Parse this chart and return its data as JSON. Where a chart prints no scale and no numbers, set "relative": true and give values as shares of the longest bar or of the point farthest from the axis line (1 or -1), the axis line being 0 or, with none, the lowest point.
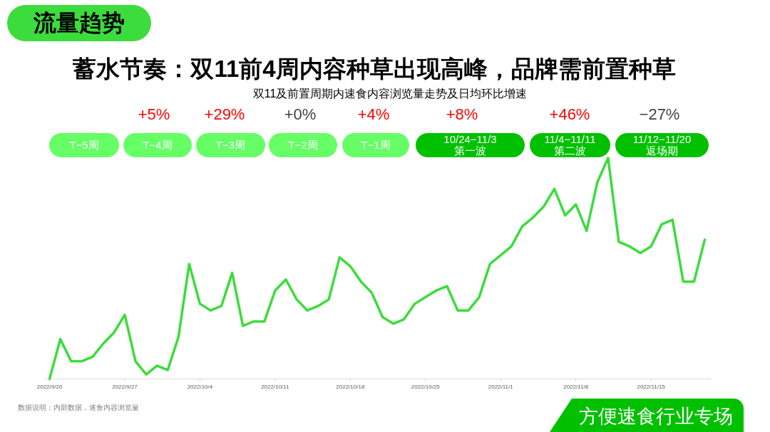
{
  "chart_data": {
    "type": "line",
    "title": "蓄水节奏：双11前4周内容种草出现高峰，品牌需前置种草",
    "subtitle": "双11及前置周期内速食内容浏览量走势及日均环比增速",
    "relative": true,
    "x": [
      "2022-09-20",
      "2022-09-21",
      "2022-09-22",
      "2022-09-23",
      "2022-09-24",
      "2022-09-25",
      "2022-09-26",
      "2022-09-27",
      "2022-09-28",
      "2022-09-29",
      "2022-09-30",
      "2022-10-01",
      "2022-10-02",
      "2022-10-03",
      "2022-10-04",
      "2022-10-05",
      "2022-10-06",
      "2022-10-07",
      "2022-10-08",
      "2022-10-09",
      "2022-10-10",
      "2022-10-11",
      "2022-10-12",
      "2022-10-13",
      "2022-10-14",
      "2022-10-15",
      "2022-10-16",
      "2022-10-17",
      "2022-10-18",
      "2022-10-19",
      "2022-10-20",
      "2022-10-21",
      "2022-10-22",
      "2022-10-23",
      "2022-10-24",
      "2022-10-25",
      "2022-10-26",
      "2022-10-27",
      "2022-10-28",
      "2022-10-29",
      "2022-10-30",
      "2022-10-31",
      "2022-11-01",
      "2022-11-02",
      "2022-11-03",
      "2022-11-04",
      "2022-11-05",
      "2022-11-06",
      "2022-11-07",
      "2022-11-08",
      "2022-11-09",
      "2022-11-10",
      "2022-11-11",
      "2022-11-12",
      "2022-11-13",
      "2022-11-14",
      "2022-11-15",
      "2022-11-16",
      "2022-11-17",
      "2022-11-18",
      "2022-11-19",
      "2022-11-20"
    ],
    "xlim": [
      "2022-09-19T12:00",
      "2022-11-20T12:00"
    ],
    "xticks": [
      {
        "value": "2022-09-20",
        "label": "2022/9/20"
      },
      {
        "value": "2022-09-27",
        "label": "2022/9/27"
      },
      {
        "value": "2022-10-04",
        "label": "2022/10/4"
      },
      {
        "value": "2022-10-11",
        "label": "2022/10/11"
      },
      {
        "value": "2022-10-18",
        "label": "2022/10/18"
      },
      {
        "value": "2022-10-25",
        "label": "2022/10/25"
      },
      {
        "value": "2022-11-01",
        "label": "2022/11/1"
      },
      {
        "value": "2022-11-08",
        "label": "2022/11/8"
      },
      {
        "value": "2022-11-15",
        "label": "2022/11/15"
      }
    ],
    "series": [
      {
        "color": "#3cdc3c",
        "values": [
          0,
          0.18,
          0.08,
          0.08,
          0.1,
          0.16,
          0.21,
          0.29,
          0.08,
          0.02,
          0.06,
          0.04,
          0.19,
          0.52,
          0.34,
          0.31,
          0.33,
          0.48,
          0.24,
          0.26,
          0.26,
          0.4,
          0.45,
          0.36,
          0.31,
          0.33,
          0.36,
          0.55,
          0.51,
          0.44,
          0.39,
          0.28,
          0.25,
          0.27,
          0.34,
          0.37,
          0.4,
          0.42,
          0.31,
          0.31,
          0.37,
          0.52,
          0.56,
          0.6,
          0.69,
          0.73,
          0.78,
          0.86,
          0.74,
          0.79,
          0.67,
          0.89,
          1,
          0.62,
          0.6,
          0.57,
          0.6,
          0.7,
          0.72,
          0.44,
          0.44,
          0.63
        ]
      }
    ],
    "annotations": [
      "流量趋势",
      "+5%",
      "+29%",
      "+0%",
      "+4%",
      "+8%",
      "+46%",
      "−27%",
      "T−5周",
      "T−4周",
      "T−3周",
      "T−2周",
      "T−1周",
      "10/24−11/3\n第一波",
      "11/4−11/11\n第二波",
      "11/12−11/20\n返场期",
      "数据说明：内部数据，速食内容浏览量",
      "方便速食行业专场"
    ]
  }
}
